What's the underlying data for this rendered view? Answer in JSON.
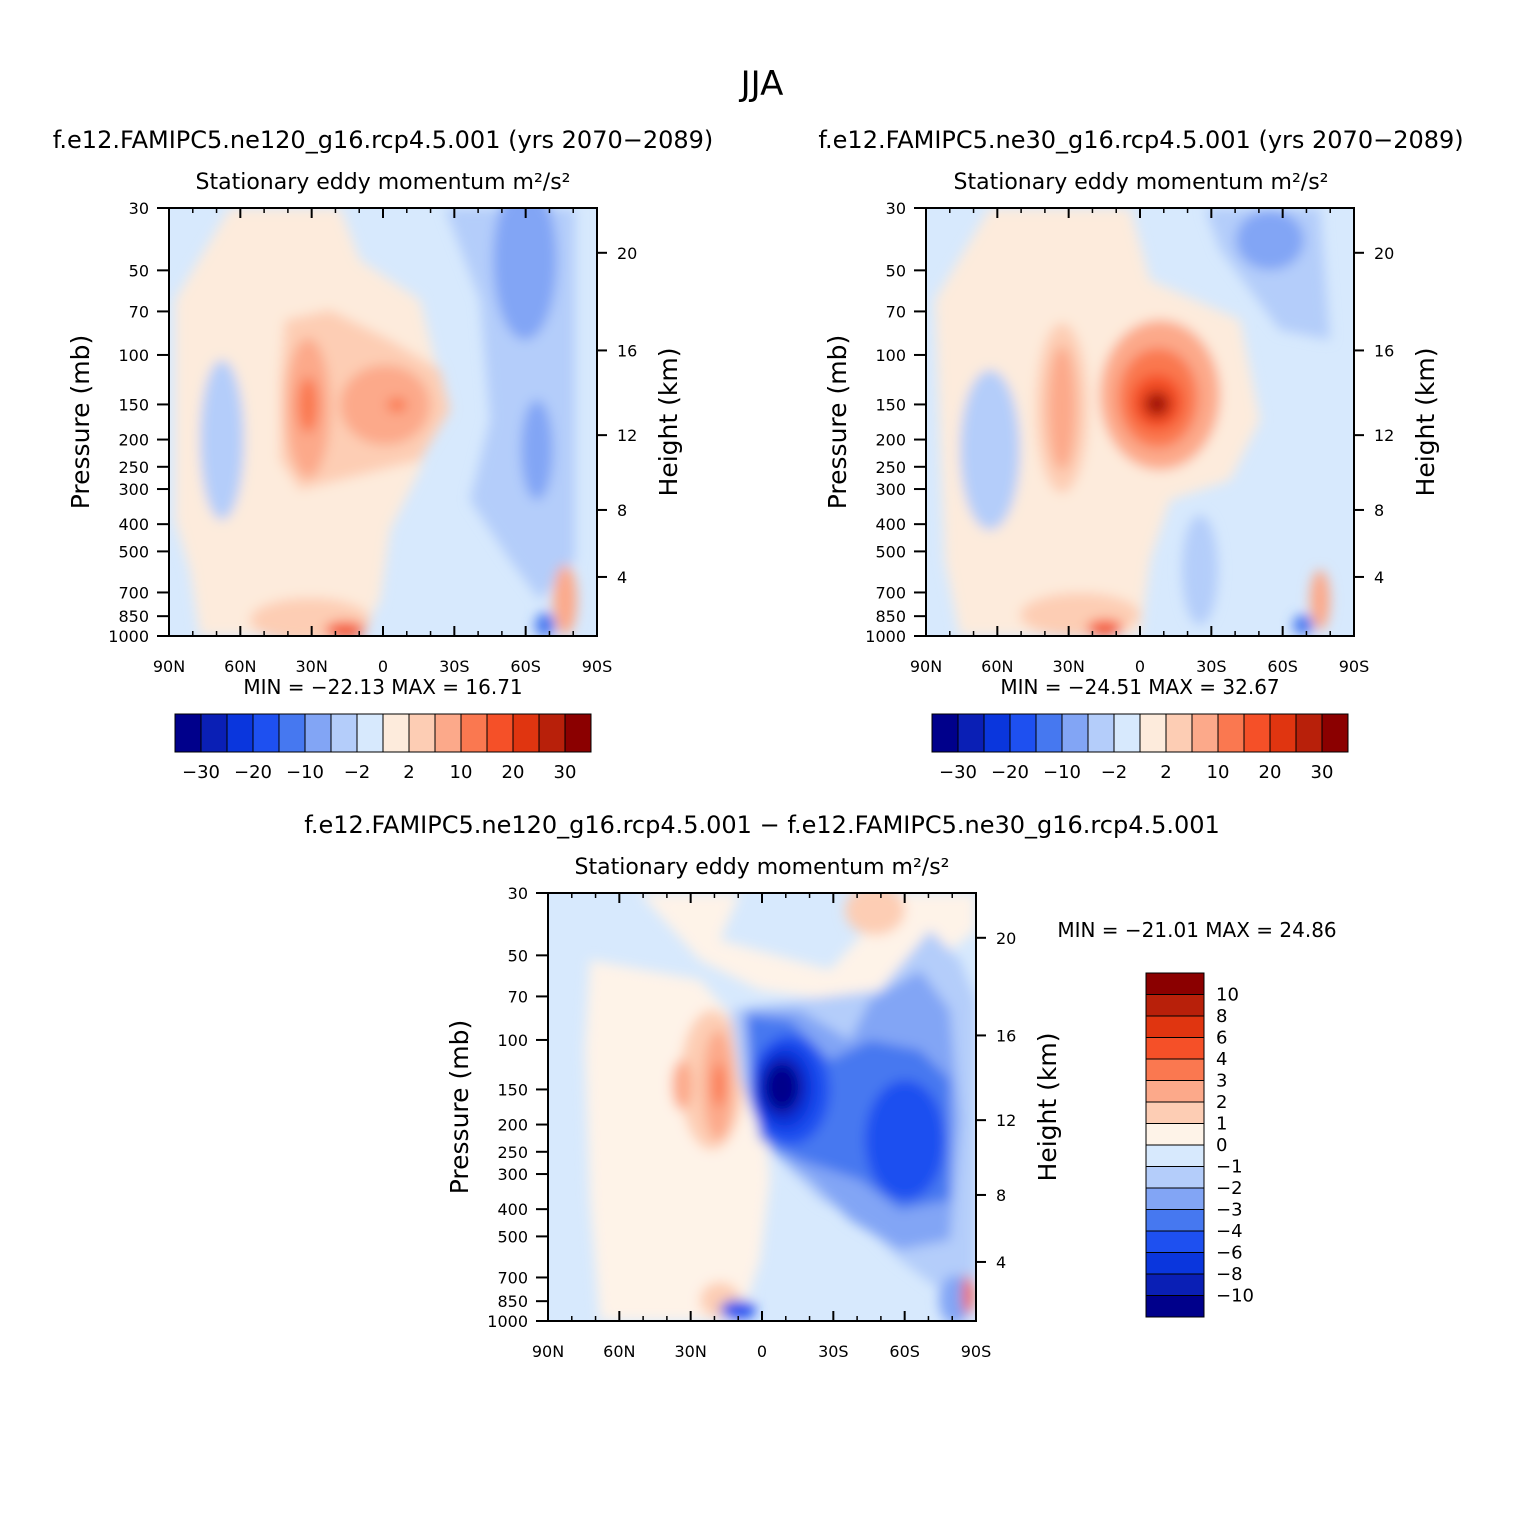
{
  "title": "JJA",
  "colors": {
    "palette16": [
      "#00008b",
      "#0a1fb5",
      "#0a36dd",
      "#1e50f0",
      "#4678f0",
      "#82a5f5",
      "#b4cdfa",
      "#d7e9fd",
      "#fdebdc",
      "#fdcdb4",
      "#fca98a",
      "#fa7850",
      "#f55028",
      "#e03510",
      "#b8200a",
      "#8b0000"
    ],
    "palette_diff": [
      "#00008b",
      "#0a1fb5",
      "#0a36dd",
      "#1e50f0",
      "#4678f0",
      "#82a5f5",
      "#b4cdfa",
      "#d7e9fd",
      "#fef3e8",
      "#fdcdb4",
      "#fca98a",
      "#fa7850",
      "#f55028",
      "#e03510",
      "#b8200a",
      "#8b0000"
    ]
  },
  "chart_data": [
    {
      "type": "contour",
      "case_title": "f.e12.FAMIPC5.ne120_g16.rcp4.5.001 (yrs 2070−2089)",
      "subtitle": "Stationary eddy momentum m²/s²",
      "variable": "Stationary eddy momentum",
      "units": "m²/s²",
      "xlabel": "",
      "ylabel": "Pressure (mb)",
      "y2label": "Height (km)",
      "x_ticks": [
        "90N",
        "60N",
        "30N",
        "0",
        "30S",
        "60S",
        "90S"
      ],
      "y_ticks": [
        "30",
        "50",
        "70",
        "100",
        "150",
        "200",
        "250",
        "300",
        "400",
        "500",
        "700",
        "850",
        "1000"
      ],
      "y2_ticks": [
        "20",
        "16",
        "12",
        "8",
        "4"
      ],
      "stats_text": "MIN = −22.13   MAX =  16.71",
      "min": -22.13,
      "max": 16.71,
      "colorbar_labels": [
        "−30",
        "−20",
        "−10",
        "−2",
        "2",
        "10",
        "20",
        "30"
      ],
      "contour_levels": [
        -30,
        -25,
        -20,
        -15,
        -10,
        -5,
        -2,
        0,
        2,
        5,
        10,
        15,
        20,
        25,
        30
      ],
      "features": [
        {
          "lat": -65,
          "p": 150,
          "value": -5
        },
        {
          "lat": 30,
          "p": 150,
          "value": 10
        },
        {
          "lat": -12,
          "p": 150,
          "value": 10
        },
        {
          "lat": 55,
          "p": 180,
          "value": -2
        }
      ]
    },
    {
      "type": "contour",
      "case_title": "f.e12.FAMIPC5.ne30_g16.rcp4.5.001 (yrs 2070−2089)",
      "subtitle": "Stationary eddy momentum m²/s²",
      "variable": "Stationary eddy momentum",
      "units": "m²/s²",
      "xlabel": "",
      "ylabel": "Pressure (mb)",
      "y2label": "Height (km)",
      "x_ticks": [
        "90N",
        "60N",
        "30N",
        "0",
        "30S",
        "60S",
        "90S"
      ],
      "y_ticks": [
        "30",
        "50",
        "70",
        "100",
        "150",
        "200",
        "250",
        "300",
        "400",
        "500",
        "700",
        "850",
        "1000"
      ],
      "y2_ticks": [
        "20",
        "16",
        "12",
        "8",
        "4"
      ],
      "stats_text": "MIN = −24.51   MAX =  32.67",
      "min": -24.51,
      "max": 32.67,
      "colorbar_labels": [
        "−30",
        "−20",
        "−10",
        "−2",
        "2",
        "10",
        "20",
        "30"
      ],
      "contour_levels": [
        -30,
        -25,
        -20,
        -15,
        -10,
        -5,
        -2,
        0,
        2,
        5,
        10,
        15,
        20,
        25,
        30
      ],
      "features": [
        {
          "lat": -8,
          "p": 150,
          "value": 30
        },
        {
          "lat": 25,
          "p": 150,
          "value": 10
        },
        {
          "lat": 70,
          "p": 180,
          "value": -2
        }
      ]
    },
    {
      "type": "contour",
      "case_title": "f.e12.FAMIPC5.ne120_g16.rcp4.5.001 − f.e12.FAMIPC5.ne30_g16.rcp4.5.001",
      "subtitle": "Stationary eddy momentum m²/s²",
      "variable": "Stationary eddy momentum",
      "units": "m²/s²",
      "xlabel": "",
      "ylabel": "Pressure (mb)",
      "y2label": "Height (km)",
      "x_ticks": [
        "90N",
        "60N",
        "30N",
        "0",
        "30S",
        "60S",
        "90S"
      ],
      "y_ticks": [
        "30",
        "50",
        "70",
        "100",
        "150",
        "200",
        "250",
        "300",
        "400",
        "500",
        "700",
        "850",
        "1000"
      ],
      "y2_ticks": [
        "20",
        "16",
        "12",
        "8",
        "4"
      ],
      "stats_text": "MIN = −21.01   MAX =  24.86",
      "min": -21.01,
      "max": 24.86,
      "colorbar_labels": [
        "10",
        "8",
        "6",
        "4",
        "3",
        "2",
        "1",
        "0",
        "−1",
        "−2",
        "−3",
        "−4",
        "−6",
        "−8",
        "−10"
      ],
      "contour_levels": [
        -10,
        -8,
        -6,
        -4,
        -3,
        -2,
        -1,
        0,
        1,
        2,
        3,
        4,
        6,
        8,
        10
      ],
      "features": [
        {
          "lat": -10,
          "p": 150,
          "value": -10
        },
        {
          "lat": -65,
          "p": 230,
          "value": -6
        },
        {
          "lat": 20,
          "p": 150,
          "value": 6
        }
      ]
    }
  ]
}
